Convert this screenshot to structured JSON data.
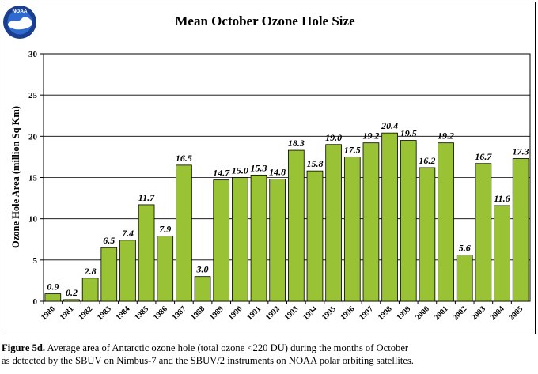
{
  "logo": {
    "text": "NOAA",
    "icon": "noaa-logo-icon",
    "colors": {
      "ring": "#1b3f8f",
      "sky": "#2f6ad0",
      "bird": "#ffffff"
    }
  },
  "caption": {
    "label": "Figure 5d.",
    "text": "Average area of Antarctic ozone hole (total ozone <220 DU) during the months of October",
    "text2": "as detected by the SBUV on Nimbus-7 and the SBUV/2 instruments on NOAA polar orbiting satellites."
  },
  "chart_data": {
    "type": "bar",
    "title": "Mean October Ozone Hole Size",
    "xlabel": "",
    "ylabel": "Ozone Hole Area (million Sq Km)",
    "ylim": [
      0,
      30
    ],
    "yticks": [
      0,
      5,
      10,
      15,
      20,
      25,
      30
    ],
    "grid": true,
    "legend": "none",
    "bar_color": "#99c234",
    "categories": [
      "1980",
      "1981",
      "1982",
      "1983",
      "1984",
      "1985",
      "1986",
      "1987",
      "1988",
      "1989",
      "1990",
      "1991",
      "1992",
      "1993",
      "1994",
      "1995",
      "1996",
      "1997",
      "1998",
      "1999",
      "2000",
      "2001",
      "2002",
      "2003",
      "2004",
      "2005"
    ],
    "values": [
      0.9,
      0.2,
      2.8,
      6.5,
      7.4,
      11.7,
      7.9,
      16.5,
      3.0,
      14.7,
      15.0,
      15.3,
      14.8,
      18.3,
      15.8,
      19.0,
      17.5,
      19.2,
      20.4,
      19.5,
      16.2,
      19.2,
      5.6,
      16.7,
      11.6,
      17.3
    ],
    "value_labels": [
      "0.9",
      "0.2",
      "2.8",
      "6.5",
      "7.4",
      "11.7",
      "7.9",
      "16.5",
      "3.0",
      "14.7",
      "15.0",
      "15.3",
      "14.8",
      "18.3",
      "15.8",
      "19.0",
      "17.5",
      "19.2",
      "20.4",
      "19.5",
      "16.2",
      "19.2",
      "5.6",
      "16.7",
      "11.6",
      "17.3"
    ]
  }
}
